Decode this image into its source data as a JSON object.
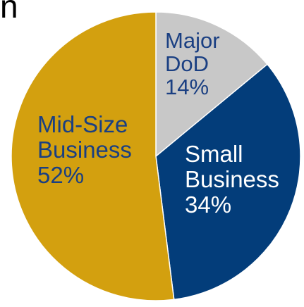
{
  "chart_data": {
    "type": "pie",
    "title": "n",
    "slices": [
      {
        "label_lines": [
          "Major",
          "DoD"
        ],
        "value": 14,
        "value_label": "14%",
        "color": "#c8c8c8",
        "text_color": "#1a3f82"
      },
      {
        "label_lines": [
          "Small",
          "Business"
        ],
        "value": 34,
        "value_label": "34%",
        "color": "#033d7a",
        "text_color": "#ffffff"
      },
      {
        "label_lines": [
          "Mid-Size",
          "Business"
        ],
        "value": 52,
        "value_label": "52%",
        "color": "#d3a00f",
        "text_color": "#1a3f82"
      }
    ],
    "start_angle_deg": 0,
    "direction": "clockwise",
    "legend": "none",
    "slice_border_color": "#ffffff"
  }
}
